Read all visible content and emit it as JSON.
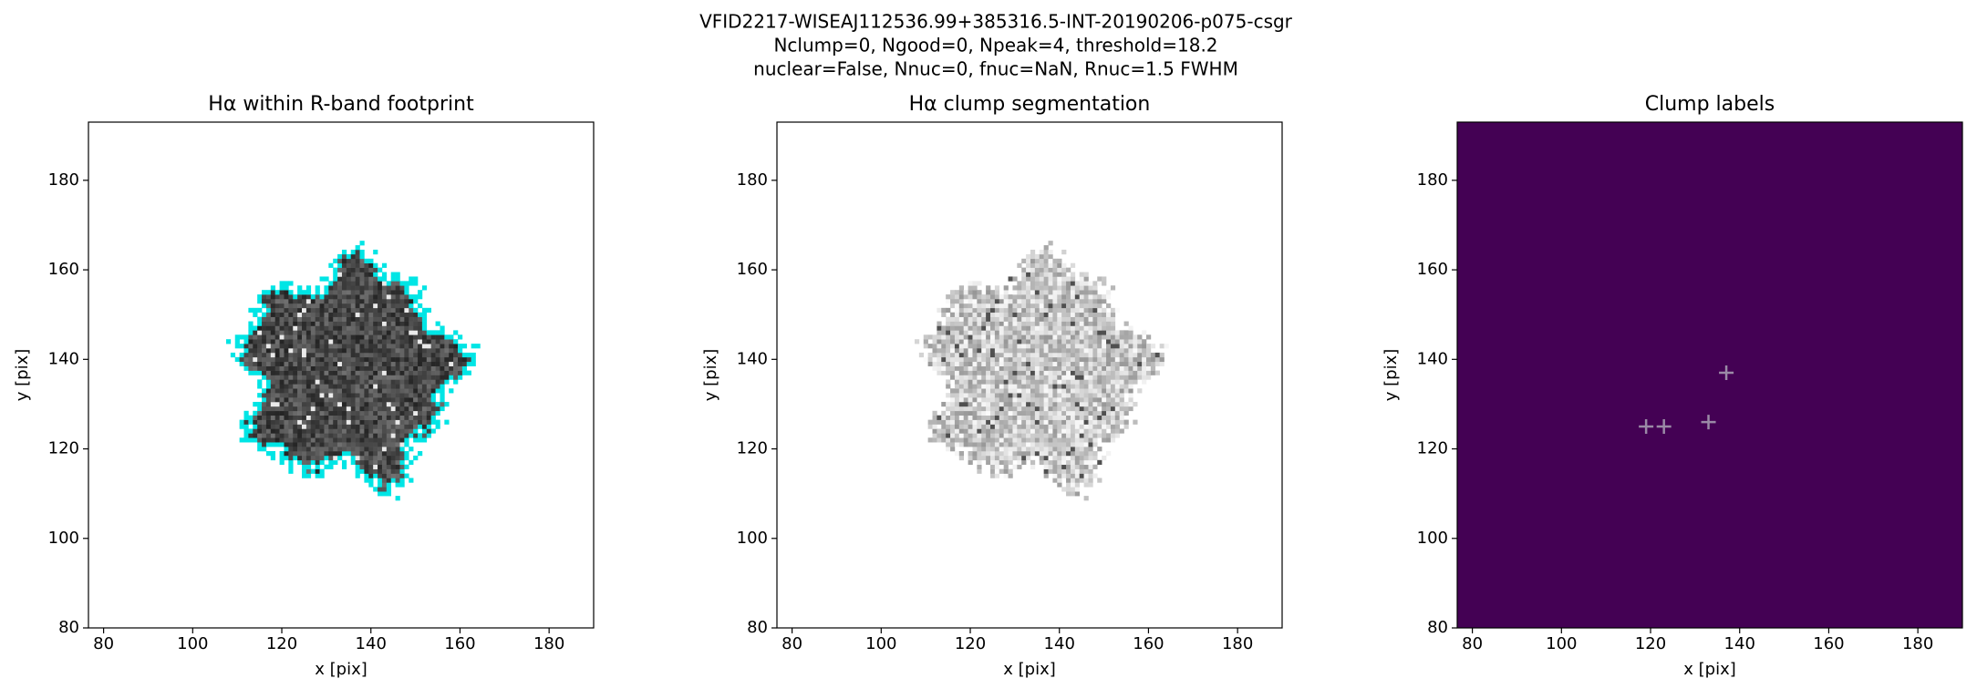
{
  "suptitle": [
    "VFID2217-WISEAJ112536.99+385316.5-INT-20190206-p075-csgr",
    "Nclump=0, Ngood=0, Npeak=4, threshold=18.2",
    "nuclear=False, Nnuc=0, fnuc=NaN, Rnuc=1.5 FWHM"
  ],
  "chart_data": [
    {
      "type": "image",
      "title": "Hα within R-band footprint",
      "xlabel": "x [pix]",
      "ylabel": "y [pix]",
      "xlim": [
        76.6,
        190
      ],
      "ylim": [
        80,
        193
      ],
      "xticks": [
        80,
        100,
        120,
        140,
        160,
        180
      ],
      "yticks": [
        80,
        100,
        120,
        140,
        160,
        180
      ],
      "cmap": "dark",
      "edge_color": "#00e5e5"
    },
    {
      "type": "image",
      "title": "Hα clump segmentation",
      "xlabel": "x [pix]",
      "ylabel": "y [pix]",
      "xlim": [
        76.6,
        190
      ],
      "ylim": [
        80,
        193
      ],
      "xticks": [
        80,
        100,
        120,
        140,
        160,
        180
      ],
      "yticks": [
        80,
        100,
        120,
        140,
        160,
        180
      ],
      "cmap": "light"
    },
    {
      "type": "scatter",
      "title": "Clump labels",
      "xlabel": "x [pix]",
      "ylabel": "y [pix]",
      "xlim": [
        76.6,
        190
      ],
      "ylim": [
        80,
        193
      ],
      "xticks": [
        80,
        100,
        120,
        140,
        160,
        180
      ],
      "yticks": [
        80,
        100,
        120,
        140,
        160,
        180
      ],
      "background": "#440154",
      "x": [
        119,
        123,
        133,
        137
      ],
      "values": [
        125,
        125,
        126,
        137
      ],
      "color": "#9a8aa6"
    }
  ]
}
